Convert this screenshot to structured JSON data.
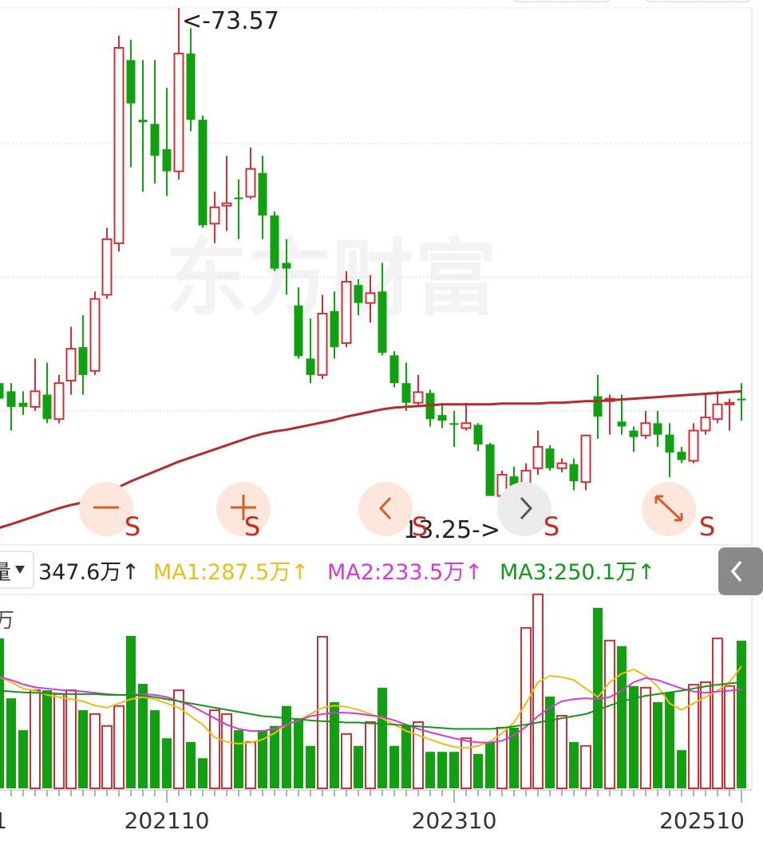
{
  "chart_data": [
    {
      "type": "candlestick",
      "watermark": "东方财富",
      "high_label": "<-73.57",
      "low_label": "13.25->",
      "signals": [
        "S",
        "S",
        "S",
        "S",
        "S"
      ],
      "up_color": "#c8323a",
      "down_color": "#12a012",
      "ylim": [
        8.2,
        74.55
      ],
      "open": [
        27.7,
        26.7,
        25.3,
        24.8,
        26.3,
        23.3,
        28.0,
        32.1,
        29.2,
        38.5,
        44.8,
        67.2,
        59.9,
        59.4,
        56.3,
        53.6,
        68.0,
        59.9,
        47.2,
        49.4,
        50.4,
        50.5,
        53.4,
        48.2,
        42.4,
        37.2,
        30.7,
        28.7,
        36.5,
        32.6,
        39.7,
        37.5,
        38.9,
        31.1,
        27.7,
        25.3,
        26.5,
        23.8,
        22.8,
        22.2,
        22.6,
        20.2,
        13.9,
        16.3,
        15.0,
        17.3,
        19.7,
        17.3,
        17.8,
        15.6,
        26.1,
        25.5,
        23.0,
        21.9,
        21.3,
        22.8,
        21.4,
        19.3,
        18.2,
        21.9,
        23.3,
        25.1,
        25.8
      ],
      "close": [
        25.8,
        24.8,
        24.8,
        26.7,
        23.3,
        27.7,
        31.9,
        28.7,
        38.0,
        45.3,
        68.7,
        61.9,
        59.6,
        55.5,
        53.6,
        68.0,
        59.9,
        47.0,
        49.2,
        49.7,
        50.2,
        53.9,
        48.2,
        41.7,
        41.7,
        31.0,
        28.7,
        36.2,
        32.1,
        40.1,
        37.5,
        38.7,
        31.4,
        27.7,
        25.3,
        26.6,
        23.3,
        23.1,
        22.6,
        22.8,
        20.2,
        13.9,
        16.5,
        14.8,
        17.0,
        19.9,
        17.3,
        17.9,
        15.7,
        21.3,
        23.6,
        25.8,
        22.4,
        21.1,
        22.8,
        21.4,
        19.2,
        18.3,
        21.9,
        23.5,
        25.1,
        25.3,
        25.6
      ],
      "low": [
        24.8,
        21.9,
        23.8,
        24.3,
        22.8,
        22.8,
        26.3,
        26.3,
        28.7,
        38.0,
        43.8,
        54.1,
        51.1,
        52.1,
        50.6,
        52.6,
        58.5,
        46.7,
        44.8,
        46.3,
        45.3,
        50.2,
        45.3,
        41.4,
        38.5,
        30.7,
        27.7,
        28.2,
        30.7,
        32.1,
        36.0,
        35.1,
        31.1,
        27.2,
        24.3,
        24.8,
        22.4,
        22.2,
        19.9,
        21.9,
        19.4,
        13.9,
        13.25,
        14.6,
        14.8,
        16.5,
        17.0,
        16.8,
        14.6,
        14.6,
        20.9,
        21.4,
        21.4,
        19.3,
        20.9,
        19.9,
        16.2,
        17.9,
        17.9,
        21.4,
        22.8,
        21.9,
        23.1
      ],
      "high": [
        29.7,
        27.7,
        26.7,
        30.7,
        30.2,
        28.7,
        34.6,
        36.0,
        38.9,
        46.7,
        70.2,
        69.7,
        67.2,
        67.2,
        63.8,
        73.57,
        71.1,
        60.4,
        51.1,
        55.5,
        52.6,
        56.5,
        55.5,
        48.7,
        45.3,
        39.4,
        35.6,
        38.5,
        38.9,
        41.4,
        40.4,
        40.9,
        42.4,
        31.6,
        30.2,
        28.7,
        26.9,
        25.3,
        24.3,
        25.3,
        22.8,
        20.4,
        17.0,
        17.5,
        17.9,
        21.9,
        20.1,
        18.5,
        18.5,
        21.4,
        28.7,
        26.3,
        26.3,
        22.4,
        24.3,
        24.3,
        22.8,
        19.9,
        22.8,
        26.5,
        26.7,
        25.8,
        27.7
      ],
      "ma_line": {
        "color": "#b52a2e",
        "values": [
          10.0,
          10.45,
          10.94,
          11.43,
          11.92,
          12.4,
          12.8,
          13.1,
          13.7,
          14.4,
          15.0,
          15.7,
          16.3,
          16.9,
          17.5,
          18.1,
          18.6,
          19.1,
          19.6,
          20.1,
          20.6,
          21.1,
          21.5,
          21.8,
          22.0,
          22.3,
          22.6,
          22.9,
          23.2,
          23.6,
          23.9,
          24.2,
          24.5,
          24.7,
          24.8,
          24.9,
          25.0,
          25.1,
          25.1,
          25.1,
          25.1,
          25.1,
          25.2,
          25.2,
          25.2,
          25.2,
          25.3,
          25.3,
          25.4,
          25.5,
          25.5,
          25.6,
          25.7,
          25.8,
          25.9,
          26.0,
          26.1,
          26.2,
          26.3,
          26.4,
          26.5,
          26.6,
          26.7
        ]
      }
    },
    {
      "type": "volume-bar",
      "selector": "量",
      "unit_label": "万",
      "current_label": "347.6万↑",
      "ylim": [
        0,
        456.6
      ],
      "categories": [
        "1",
        null,
        null,
        null,
        null,
        null,
        null,
        null,
        null,
        null,
        null,
        null,
        null,
        null,
        "202110",
        null,
        null,
        null,
        null,
        null,
        null,
        null,
        null,
        null,
        null,
        null,
        null,
        null,
        null,
        null,
        null,
        null,
        null,
        null,
        null,
        null,
        null,
        null,
        "202310",
        null,
        null,
        null,
        null,
        null,
        null,
        null,
        null,
        null,
        null,
        null,
        null,
        null,
        null,
        null,
        null,
        null,
        null,
        null,
        null,
        null,
        null,
        null,
        "202510"
      ],
      "values": [
        353,
        212,
        137,
        231,
        231,
        222,
        231,
        184,
        175,
        147,
        194,
        359,
        246,
        184,
        118,
        231,
        109,
        71,
        184,
        175,
        137,
        109,
        137,
        147,
        194,
        165,
        100,
        357,
        203,
        128,
        100,
        156,
        237,
        100,
        147,
        156,
        86,
        86,
        86,
        118,
        81,
        109,
        143,
        143,
        378,
        457,
        216,
        171,
        109,
        100,
        425,
        348,
        335,
        241,
        237,
        203,
        226,
        90,
        244,
        250,
        353,
        241,
        347.6
      ],
      "series": [
        {
          "name": "MA1:287.5万↑",
          "color": "#e9bd1c",
          "values": [
            263,
            250,
            235,
            230,
            220,
            215,
            210,
            205,
            195,
            190,
            200,
            210,
            215,
            210,
            200,
            190,
            170,
            150,
            120,
            110,
            105,
            108,
            115,
            130,
            150,
            160,
            175,
            190,
            195,
            192,
            185,
            175,
            165,
            150,
            135,
            125,
            115,
            105,
            98,
            95,
            100,
            110,
            130,
            155,
            200,
            250,
            265,
            262,
            255,
            235,
            215,
            250,
            270,
            280,
            265,
            240,
            200,
            185,
            200,
            215,
            230,
            250,
            287.5
          ]
        },
        {
          "name": "MA2:233.5万↑",
          "color": "#d23cd2",
          "values": [
            263,
            255,
            245,
            238,
            235,
            232,
            230,
            228,
            225,
            222,
            220,
            220,
            222,
            220,
            215,
            205,
            195,
            180,
            165,
            150,
            140,
            135,
            135,
            140,
            150,
            160,
            170,
            175,
            178,
            178,
            176,
            172,
            168,
            160,
            150,
            140,
            132,
            125,
            118,
            112,
            108,
            108,
            112,
            125,
            145,
            170,
            190,
            205,
            210,
            212,
            210,
            215,
            230,
            250,
            260,
            255,
            245,
            235,
            228,
            225,
            228,
            230,
            233.5
          ]
        },
        {
          "name": "MA3:250.1万↑",
          "color": "#16951c",
          "values": [
            230,
            228,
            226,
            225,
            224,
            223,
            222,
            222,
            222,
            220,
            220,
            220,
            218,
            215,
            210,
            205,
            200,
            195,
            190,
            185,
            180,
            175,
            170,
            168,
            165,
            163,
            160,
            158,
            157,
            155,
            155,
            153,
            152,
            150,
            148,
            146,
            144,
            142,
            140,
            140,
            140,
            140,
            142,
            146,
            150,
            155,
            160,
            165,
            170,
            175,
            185,
            195,
            205,
            212,
            218,
            222,
            226,
            230,
            235,
            240,
            244,
            247,
            250.1
          ]
        }
      ]
    }
  ]
}
